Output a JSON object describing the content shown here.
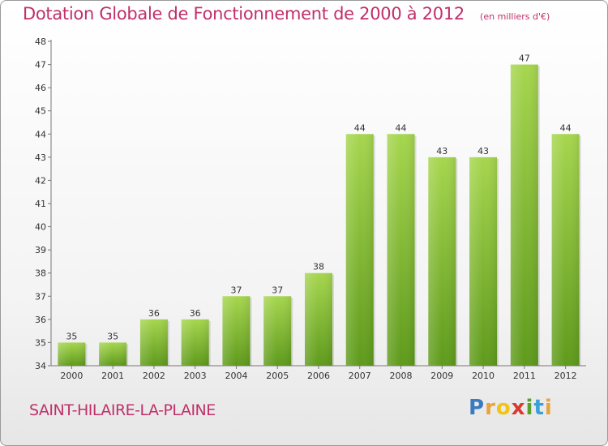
{
  "title": "Dotation Globale de Fonctionnement de 2000 à 2012",
  "subtitle": "(en milliers d'€)",
  "commune": "SAINT-HILAIRE-LA-PLAINE",
  "logo": {
    "letters": [
      "P",
      "r",
      "o",
      "x",
      "i",
      "t",
      "i"
    ],
    "colors": [
      "#3a7bbf",
      "#e8a33c",
      "#f0c419",
      "#d83a2e",
      "#5aa02c",
      "#3aa0d8",
      "#e8a33c"
    ]
  },
  "colors": {
    "bar_top": "#a6d64e",
    "bar_bottom": "#5e9a1b",
    "text": "#c0306a"
  },
  "chart_data": {
    "type": "bar",
    "categories": [
      "2000",
      "2001",
      "2002",
      "2003",
      "2004",
      "2005",
      "2006",
      "2007",
      "2008",
      "2009",
      "2010",
      "2011",
      "2012"
    ],
    "values": [
      35,
      35,
      36,
      36,
      37,
      37,
      38,
      44,
      44,
      43,
      43,
      47,
      44
    ],
    "title": "Dotation Globale de Fonctionnement de 2000 à 2012",
    "ylabel": "",
    "xlabel": "",
    "ylim": [
      34,
      48
    ],
    "yticks": [
      34,
      35,
      36,
      37,
      38,
      39,
      40,
      41,
      42,
      43,
      44,
      45,
      46,
      47,
      48
    ],
    "grid": false,
    "data_labels": true
  }
}
